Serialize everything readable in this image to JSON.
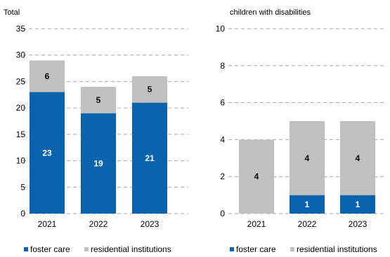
{
  "chart_data": [
    {
      "type": "bar",
      "stacked": true,
      "title": "Total",
      "xlabel": "",
      "ylabel": "",
      "categories": [
        "2021",
        "2022",
        "2023"
      ],
      "ylim": [
        0,
        35
      ],
      "yticks": [
        "0",
        "5",
        "10",
        "15",
        "20",
        "25",
        "30",
        "35"
      ],
      "grid": true,
      "legend": "bottom",
      "series": [
        {
          "name": "foster care",
          "values": [
            23,
            19,
            21
          ],
          "labels": [
            "23",
            "19",
            "21"
          ],
          "color": "#0a64ad",
          "label_color": "#ffffff"
        },
        {
          "name": "residential institutions",
          "values": [
            6,
            5,
            5
          ],
          "labels": [
            "6",
            "5",
            "5"
          ],
          "color": "#c0c0c0",
          "label_color": "#000000"
        }
      ]
    },
    {
      "type": "bar",
      "stacked": true,
      "title": "children with disabilities",
      "xlabel": "",
      "ylabel": "",
      "categories": [
        "2021",
        "2022",
        "2023"
      ],
      "ylim": [
        0,
        10
      ],
      "yticks": [
        "0",
        "2",
        "4",
        "6",
        "8",
        "10"
      ],
      "grid": true,
      "legend": "bottom",
      "series": [
        {
          "name": "foster care",
          "values": [
            0,
            1,
            1
          ],
          "labels": [
            "0",
            "1",
            "1"
          ],
          "color": "#0a64ad",
          "label_color": "#ffffff"
        },
        {
          "name": "residential institutions",
          "values": [
            4,
            4,
            4
          ],
          "labels": [
            "4",
            "4",
            "4"
          ],
          "color": "#c0c0c0",
          "label_color": "#000000"
        }
      ]
    }
  ]
}
